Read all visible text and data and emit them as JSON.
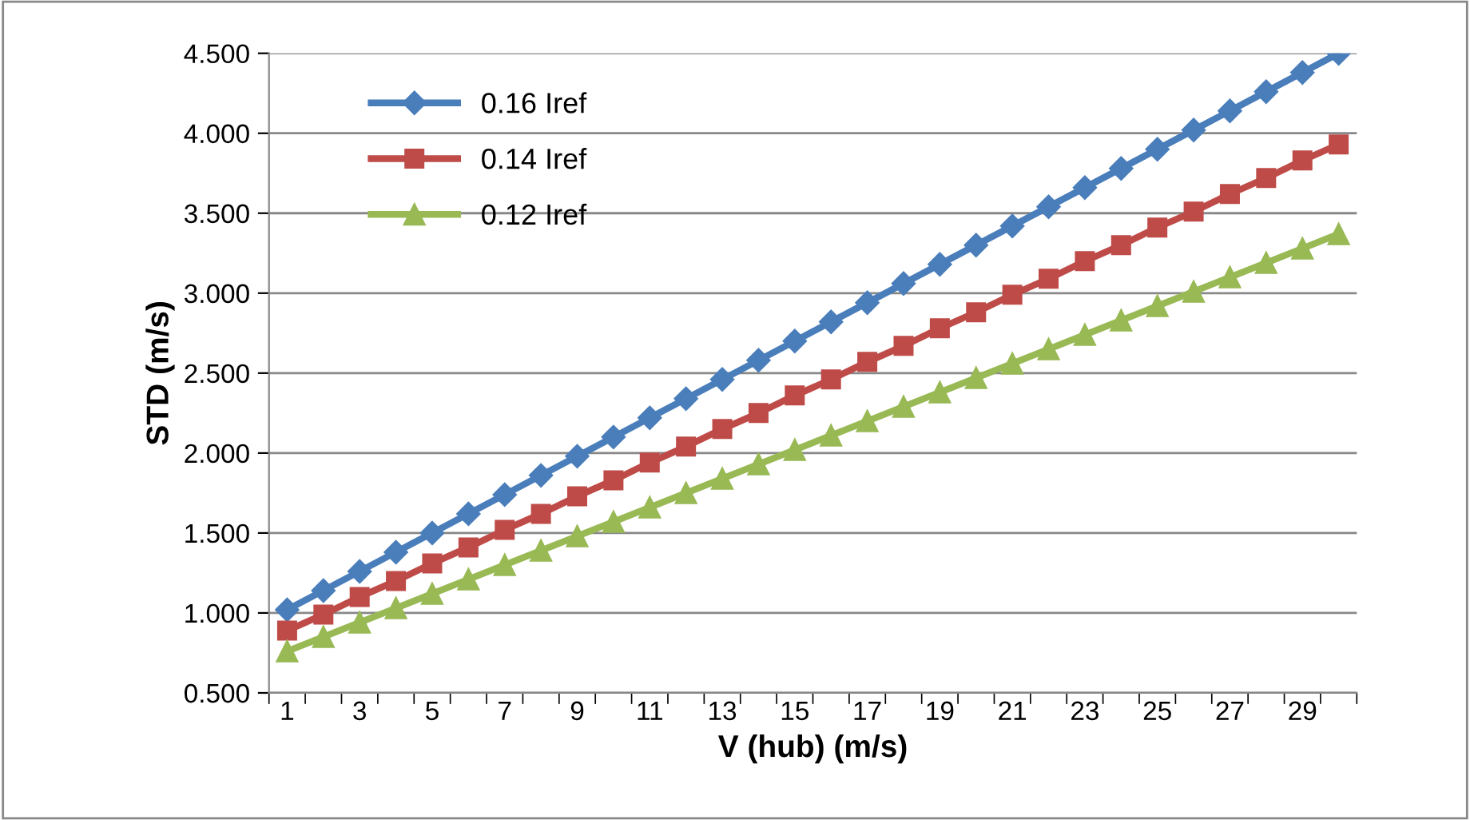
{
  "chart_data": {
    "type": "line",
    "xlabel": "V (hub) (m/s)",
    "ylabel": "STD (m/s)",
    "categories": [
      "1",
      null,
      "3",
      null,
      "5",
      null,
      "7",
      null,
      "9",
      null,
      "11",
      null,
      "13",
      null,
      "15",
      null,
      "17",
      null,
      "19",
      null,
      "21",
      null,
      "23",
      null,
      "25",
      null,
      "27",
      null,
      "29",
      null
    ],
    "ylim": [
      0.5,
      4.5
    ],
    "yticks": [
      {
        "value": 0.5,
        "label": "0.500"
      },
      {
        "value": 1.0,
        "label": "1.000"
      },
      {
        "value": 1.5,
        "label": "1.500"
      },
      {
        "value": 2.0,
        "label": "2.000"
      },
      {
        "value": 2.5,
        "label": "2.500"
      },
      {
        "value": 3.0,
        "label": "3.000"
      },
      {
        "value": 3.5,
        "label": "3.500"
      },
      {
        "value": 4.0,
        "label": "4.000"
      },
      {
        "value": 4.5,
        "label": "4.500"
      }
    ],
    "grid": "y",
    "legend": "top left",
    "series": [
      {
        "name": "0.16 Iref",
        "color": "#4a7ebb",
        "marker": "diamond",
        "values": [
          1.02,
          1.14,
          1.26,
          1.38,
          1.5,
          1.62,
          1.74,
          1.86,
          1.98,
          2.1,
          2.22,
          2.34,
          2.46,
          2.58,
          2.7,
          2.82,
          2.94,
          3.06,
          3.18,
          3.3,
          3.42,
          3.54,
          3.66,
          3.78,
          3.9,
          4.02,
          4.14,
          4.26,
          4.38,
          4.5
        ]
      },
      {
        "name": "0.14 Iref",
        "color": "#be4b48",
        "marker": "square",
        "values": [
          0.89,
          0.99,
          1.1,
          1.2,
          1.31,
          1.41,
          1.52,
          1.62,
          1.73,
          1.83,
          1.94,
          2.04,
          2.15,
          2.25,
          2.36,
          2.46,
          2.57,
          2.67,
          2.78,
          2.88,
          2.99,
          3.09,
          3.2,
          3.3,
          3.41,
          3.51,
          3.62,
          3.72,
          3.83,
          3.93
        ]
      },
      {
        "name": "0.12 Iref",
        "color": "#98b954",
        "marker": "triangle",
        "values": [
          0.76,
          0.85,
          0.94,
          1.03,
          1.12,
          1.21,
          1.3,
          1.39,
          1.48,
          1.57,
          1.66,
          1.75,
          1.84,
          1.93,
          2.02,
          2.11,
          2.2,
          2.29,
          2.38,
          2.47,
          2.56,
          2.65,
          2.74,
          2.83,
          2.92,
          3.01,
          3.1,
          3.19,
          3.28,
          3.37
        ]
      }
    ]
  }
}
